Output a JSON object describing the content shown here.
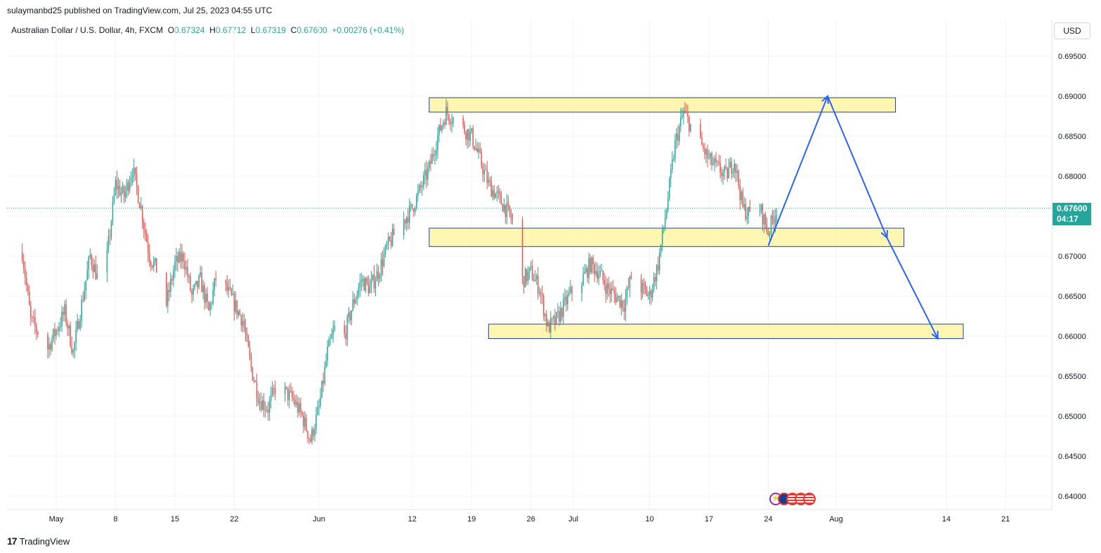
{
  "header": {
    "publisher": "sulaymanbd25 published on TradingView.com, Jul 25, 2023 04:55 UTC",
    "symbol": "Australian Dollar / U.S. Dollar, 4h, FXCM",
    "o_label": "O",
    "o_value": "0.67324",
    "h_label": "H",
    "h_value": "0.67712",
    "l_label": "L",
    "l_value": "0.67319",
    "c_label": "C",
    "c_value": "0.67600",
    "change": "+0.00276 (+0.41%)"
  },
  "currency": "USD",
  "price_tag": {
    "price": "0.67600",
    "countdown": "04:17"
  },
  "footer": {
    "brand": "TradingView"
  },
  "events": [
    {
      "icon": "lightning-icon"
    },
    {
      "icon": "au-flag-icon"
    },
    {
      "icon": "us-flag-icon"
    },
    {
      "icon": "us-flag-icon"
    },
    {
      "icon": "us-flag-icon"
    }
  ],
  "colors": {
    "up": "#26a69a",
    "down": "#ef5350",
    "zone_fill": "#fff59d",
    "zone_border": "#1e3fae",
    "projection": "#2962ff",
    "last_price": "#26a69a"
  },
  "chart_data": {
    "type": "candlestick",
    "title": "Australian Dollar / U.S. Dollar, 4h, FXCM",
    "ylim": [
      0.6385,
      0.6975
    ],
    "y_ticks": [
      "0.69500",
      "0.69000",
      "0.68500",
      "0.68000",
      "0.67500",
      "0.67000",
      "0.66500",
      "0.66000",
      "0.65500",
      "0.65000",
      "0.64500",
      "0.64000"
    ],
    "x_ticks": [
      "May",
      "8",
      "15",
      "22",
      "Jun",
      "12",
      "19",
      "26",
      "Jul",
      "10",
      "17",
      "24",
      "Aug",
      "14",
      "21"
    ],
    "x_tick_dates": [
      "2023-05-01",
      "2023-05-08",
      "2023-05-15",
      "2023-05-22",
      "2023-06-01",
      "2023-06-12",
      "2023-06-19",
      "2023-06-26",
      "2023-07-01",
      "2023-07-10",
      "2023-07-17",
      "2023-07-24",
      "2023-08-01",
      "2023-08-14",
      "2023-08-21"
    ],
    "last_price": 0.676,
    "grid": true,
    "price_path": [
      [
        "2023-04-27",
        0.6705
      ],
      [
        "2023-04-28",
        0.662
      ],
      [
        "2023-04-30",
        0.6585
      ],
      [
        "2023-05-02",
        0.663
      ],
      [
        "2023-05-03",
        0.658
      ],
      [
        "2023-05-04",
        0.664
      ],
      [
        "2023-05-05",
        0.67
      ],
      [
        "2023-05-06",
        0.667
      ],
      [
        "2023-05-07",
        0.67
      ],
      [
        "2023-05-08",
        0.679
      ],
      [
        "2023-05-09",
        0.6775
      ],
      [
        "2023-05-10",
        0.681
      ],
      [
        "2023-05-11",
        0.676
      ],
      [
        "2023-05-12",
        0.67
      ],
      [
        "2023-05-13",
        0.668
      ],
      [
        "2023-05-14",
        0.664
      ],
      [
        "2023-05-15",
        0.669
      ],
      [
        "2023-05-16",
        0.67
      ],
      [
        "2023-05-17",
        0.665
      ],
      [
        "2023-05-18",
        0.667
      ],
      [
        "2023-05-19",
        0.663
      ],
      [
        "2023-05-20",
        0.668
      ],
      [
        "2023-05-22",
        0.664
      ],
      [
        "2023-05-23",
        0.662
      ],
      [
        "2023-05-24",
        0.656
      ],
      [
        "2023-05-25",
        0.652
      ],
      [
        "2023-05-26",
        0.651
      ],
      [
        "2023-05-27",
        0.654
      ],
      [
        "2023-05-28",
        0.653
      ],
      [
        "2023-05-29",
        0.652
      ],
      [
        "2023-05-30",
        0.65
      ],
      [
        "2023-05-31",
        0.647
      ],
      [
        "2023-06-01",
        0.651
      ],
      [
        "2023-06-02",
        0.658
      ],
      [
        "2023-06-03",
        0.6615
      ],
      [
        "2023-06-04",
        0.66
      ],
      [
        "2023-06-05",
        0.664
      ],
      [
        "2023-06-06",
        0.667
      ],
      [
        "2023-06-07",
        0.666
      ],
      [
        "2023-06-08",
        0.668
      ],
      [
        "2023-06-09",
        0.671
      ],
      [
        "2023-06-10",
        0.673
      ],
      [
        "2023-06-11",
        0.6745
      ],
      [
        "2023-06-12",
        0.676
      ],
      [
        "2023-06-13",
        0.6785
      ],
      [
        "2023-06-14",
        0.681
      ],
      [
        "2023-06-15",
        0.685
      ],
      [
        "2023-06-16",
        0.688
      ],
      [
        "2023-06-17",
        0.687
      ],
      [
        "2023-06-18",
        0.686
      ],
      [
        "2023-06-19",
        0.685
      ],
      [
        "2023-06-20",
        0.682
      ],
      [
        "2023-06-21",
        0.679
      ],
      [
        "2023-06-22",
        0.6775
      ],
      [
        "2023-06-23",
        0.676
      ],
      [
        "2023-06-24",
        0.674
      ],
      [
        "2023-06-25",
        0.667
      ],
      [
        "2023-06-26",
        0.668
      ],
      [
        "2023-06-27",
        0.666
      ],
      [
        "2023-06-28",
        0.661
      ],
      [
        "2023-06-29",
        0.662
      ],
      [
        "2023-06-30",
        0.664
      ],
      [
        "2023-07-01",
        0.666
      ],
      [
        "2023-07-02",
        0.667
      ],
      [
        "2023-07-03",
        0.669
      ],
      [
        "2023-07-04",
        0.668
      ],
      [
        "2023-07-05",
        0.666
      ],
      [
        "2023-07-06",
        0.665
      ],
      [
        "2023-07-07",
        0.664
      ],
      [
        "2023-07-08",
        0.668
      ],
      [
        "2023-07-09",
        0.666
      ],
      [
        "2023-07-10",
        0.665
      ],
      [
        "2023-07-11",
        0.669
      ],
      [
        "2023-07-12",
        0.676
      ],
      [
        "2023-07-13",
        0.684
      ],
      [
        "2023-07-14",
        0.688
      ],
      [
        "2023-07-15",
        0.686
      ],
      [
        "2023-07-16",
        0.684
      ],
      [
        "2023-07-17",
        0.682
      ],
      [
        "2023-07-18",
        0.681
      ],
      [
        "2023-07-19",
        0.68
      ],
      [
        "2023-07-20",
        0.682
      ],
      [
        "2023-07-21",
        0.676
      ],
      [
        "2023-07-22",
        0.675
      ],
      [
        "2023-07-23",
        0.676
      ],
      [
        "2023-07-24",
        0.673
      ],
      [
        "2023-07-25",
        0.676
      ]
    ],
    "zones": [
      {
        "from": "2023-06-14",
        "to": "2023-08-08",
        "low": 0.688,
        "high": 0.6898
      },
      {
        "from": "2023-06-14",
        "to": "2023-08-09",
        "low": 0.6712,
        "high": 0.6735
      },
      {
        "from": "2023-06-21",
        "to": "2023-08-16",
        "low": 0.6597,
        "high": 0.6615
      }
    ],
    "projection": [
      [
        "2023-07-24",
        0.6713
      ],
      [
        "2023-07-31",
        0.69
      ],
      [
        "2023-08-07",
        0.6723
      ],
      [
        "2023-08-13",
        0.6597
      ]
    ]
  }
}
